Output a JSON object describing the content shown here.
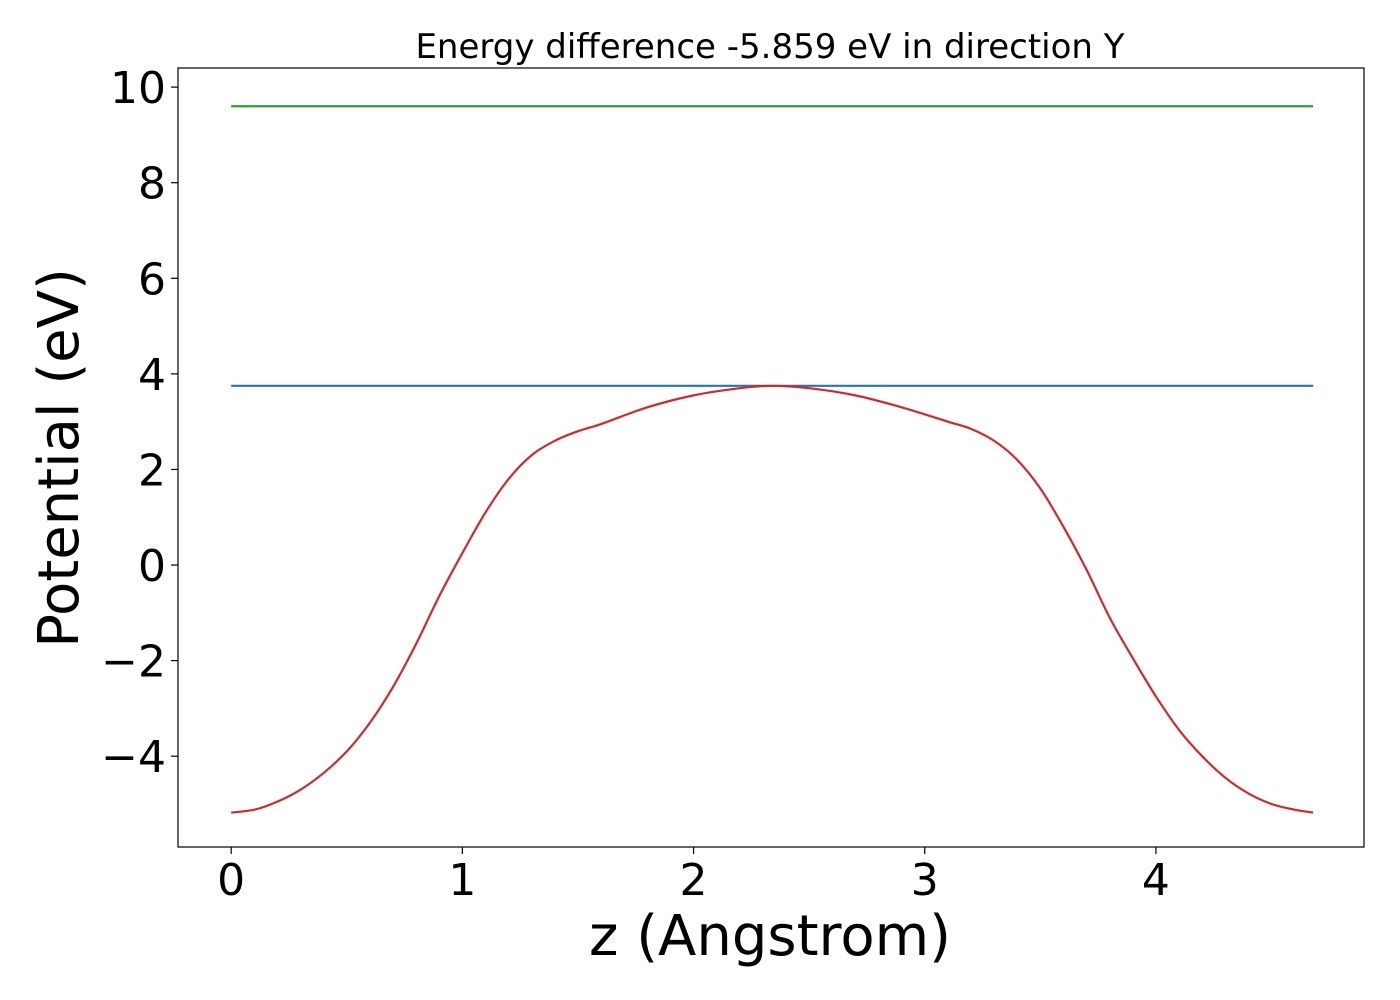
{
  "chart_data": {
    "type": "line",
    "title": "Energy difference -5.859 eV in direction Y",
    "xlabel": "z (Angstrom)",
    "ylabel": "Potential (eV)",
    "xlim": [
      -0.23,
      4.9
    ],
    "ylim": [
      -5.9,
      10.4
    ],
    "xticks": [
      0,
      1,
      2,
      3,
      4
    ],
    "yticks": [
      -4,
      -2,
      0,
      2,
      4,
      6,
      8,
      10
    ],
    "xtick_labels": [
      "0",
      "1",
      "2",
      "3",
      "4"
    ],
    "ytick_labels": [
      "−4",
      "−2",
      "0",
      "2",
      "4",
      "6",
      "8",
      "10"
    ],
    "grid": false,
    "legend": "none",
    "series": [
      {
        "color": "#2ca02c",
        "x": [
          0,
          4.68
        ],
        "y": [
          9.6,
          9.6
        ]
      },
      {
        "color": "#1f77b4",
        "x": [
          0,
          4.68
        ],
        "y": [
          3.75,
          3.75
        ]
      },
      {
        "color": "#d62728",
        "x": [
          0,
          0.1,
          0.2,
          0.3,
          0.4,
          0.5,
          0.6,
          0.7,
          0.8,
          0.9,
          1.0,
          1.1,
          1.2,
          1.3,
          1.4,
          1.5,
          1.6,
          1.8,
          2.0,
          2.2,
          2.34,
          2.5,
          2.7,
          2.9,
          3.1,
          3.2,
          3.3,
          3.4,
          3.5,
          3.6,
          3.7,
          3.8,
          3.9,
          4.0,
          4.1,
          4.2,
          4.3,
          4.4,
          4.5,
          4.6,
          4.68
        ],
        "y": [
          -5.18,
          -5.12,
          -4.95,
          -4.7,
          -4.35,
          -3.9,
          -3.3,
          -2.55,
          -1.65,
          -0.65,
          0.25,
          1.1,
          1.8,
          2.3,
          2.6,
          2.8,
          2.95,
          3.3,
          3.55,
          3.7,
          3.75,
          3.7,
          3.55,
          3.3,
          3.0,
          2.85,
          2.6,
          2.2,
          1.6,
          0.8,
          -0.1,
          -1.1,
          -1.95,
          -2.75,
          -3.45,
          -4.0,
          -4.45,
          -4.78,
          -5.0,
          -5.12,
          -5.18
        ]
      }
    ]
  }
}
